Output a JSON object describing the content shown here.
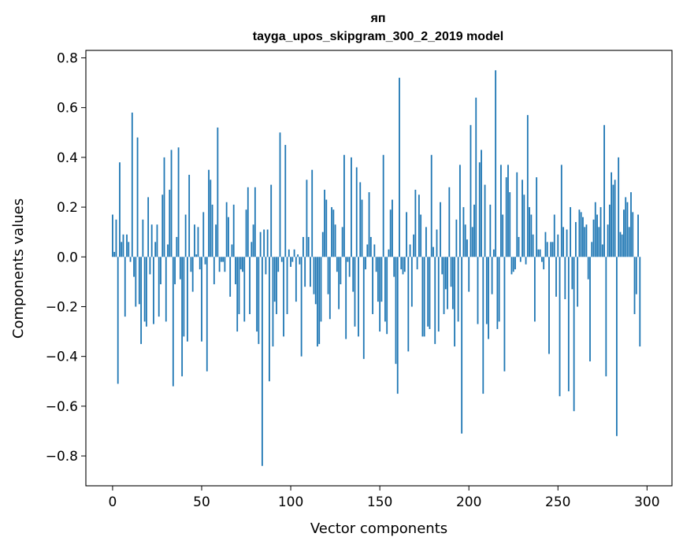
{
  "chart_data": {
    "type": "bar",
    "title_line1": "яп",
    "title_line2": "tayga_upos_skipgram_300_2_2019 model",
    "xlabel": "Vector components",
    "ylabel": "Components values",
    "xlim": [
      -15,
      314
    ],
    "ylim": [
      -0.92,
      0.83
    ],
    "xticks": [
      0,
      50,
      100,
      150,
      200,
      250,
      300
    ],
    "xtick_labels": [
      "0",
      "50",
      "100",
      "150",
      "200",
      "250",
      "300"
    ],
    "yticks": [
      -0.8,
      -0.6,
      -0.4,
      -0.2,
      0.0,
      0.2,
      0.4,
      0.6,
      0.8
    ],
    "ytick_labels": [
      "−0.8",
      "−0.6",
      "−0.4",
      "−0.2",
      "0.0",
      "0.2",
      "0.4",
      "0.6",
      "0.8"
    ],
    "grid": false,
    "bar_color": "#1f77b4",
    "values": [
      0.17,
      0.02,
      0.15,
      -0.51,
      0.38,
      0.06,
      0.09,
      -0.24,
      0.09,
      0.06,
      -0.02,
      0.58,
      -0.08,
      -0.2,
      0.48,
      -0.19,
      -0.35,
      0.15,
      -0.26,
      -0.28,
      0.24,
      -0.07,
      0.13,
      -0.27,
      0.06,
      0.13,
      -0.24,
      -0.11,
      0.25,
      0.4,
      -0.26,
      0.05,
      0.27,
      0.43,
      -0.52,
      -0.11,
      0.08,
      0.44,
      -0.09,
      -0.48,
      -0.32,
      0.17,
      -0.34,
      0.33,
      -0.06,
      -0.14,
      0.13,
      0.01,
      0.12,
      -0.05,
      -0.34,
      0.18,
      -0.03,
      -0.46,
      0.35,
      0.31,
      0.21,
      -0.11,
      0.13,
      0.52,
      -0.06,
      -0.02,
      -0.02,
      -0.06,
      0.22,
      0.16,
      -0.16,
      0.05,
      0.21,
      -0.11,
      -0.3,
      -0.23,
      -0.05,
      -0.06,
      -0.26,
      0.19,
      0.28,
      -0.23,
      0.06,
      0.13,
      0.28,
      -0.3,
      -0.35,
      0.1,
      -0.84,
      0.11,
      -0.07,
      0.11,
      -0.5,
      0.29,
      -0.36,
      -0.18,
      -0.23,
      -0.06,
      0.5,
      -0.02,
      -0.32,
      0.45,
      -0.23,
      0.03,
      -0.04,
      -0.02,
      0.03,
      -0.18,
      0.01,
      -0.03,
      -0.4,
      0.08,
      -0.12,
      0.31,
      0.08,
      -0.12,
      0.35,
      -0.15,
      -0.19,
      -0.36,
      -0.35,
      -0.26,
      0.1,
      0.27,
      0.23,
      -0.15,
      -0.25,
      0.2,
      0.19,
      0.13,
      -0.06,
      -0.21,
      -0.11,
      0.12,
      0.41,
      -0.33,
      -0.02,
      -0.08,
      0.4,
      -0.14,
      -0.28,
      0.36,
      -0.32,
      0.3,
      0.23,
      -0.41,
      -0.05,
      0.05,
      0.26,
      0.08,
      -0.23,
      0.05,
      -0.06,
      -0.18,
      -0.3,
      -0.18,
      0.41,
      -0.26,
      -0.31,
      0.03,
      0.19,
      0.23,
      -0.08,
      -0.43,
      -0.55,
      0.72,
      -0.05,
      -0.07,
      -0.06,
      0.18,
      -0.38,
      0.05,
      -0.2,
      0.09,
      0.27,
      -0.05,
      0.25,
      0.17,
      -0.32,
      -0.32,
      0.12,
      -0.28,
      -0.29,
      0.41,
      0.04,
      -0.35,
      0.11,
      -0.3,
      0.22,
      -0.07,
      -0.23,
      -0.13,
      -0.21,
      0.28,
      -0.12,
      -0.21,
      -0.36,
      0.15,
      -0.26,
      0.37,
      -0.71,
      0.2,
      0.13,
      0.07,
      -0.14,
      0.53,
      0.12,
      0.21,
      0.64,
      -0.27,
      0.38,
      0.43,
      -0.55,
      0.29,
      -0.27,
      -0.33,
      0.21,
      -0.15,
      0.03,
      0.75,
      -0.29,
      -0.26,
      0.37,
      0.17,
      -0.46,
      0.32,
      0.37,
      0.26,
      -0.07,
      -0.06,
      -0.05,
      0.34,
      0.08,
      -0.02,
      0.31,
      0.25,
      -0.03,
      0.57,
      0.2,
      0.17,
      0.09,
      -0.26,
      0.32,
      0.03,
      0.03,
      -0.02,
      -0.05,
      0.1,
      0.06,
      -0.39,
      0.06,
      0.06,
      0.17,
      -0.16,
      0.09,
      -0.56,
      0.37,
      0.12,
      -0.17,
      0.11,
      -0.54,
      0.2,
      -0.13,
      -0.62,
      0.14,
      -0.2,
      0.19,
      0.18,
      0.16,
      0.12,
      0.13,
      -0.09,
      -0.42,
      0.06,
      0.15,
      0.22,
      0.17,
      0.12,
      0.2,
      0.05,
      0.53,
      -0.48,
      0.13,
      0.21,
      0.34,
      0.29,
      0.31,
      -0.72,
      0.4,
      0.1,
      0.09,
      0.19,
      0.24,
      0.22,
      0.12,
      0.26,
      0.18,
      -0.23,
      -0.15,
      0.17,
      -0.36
    ]
  }
}
